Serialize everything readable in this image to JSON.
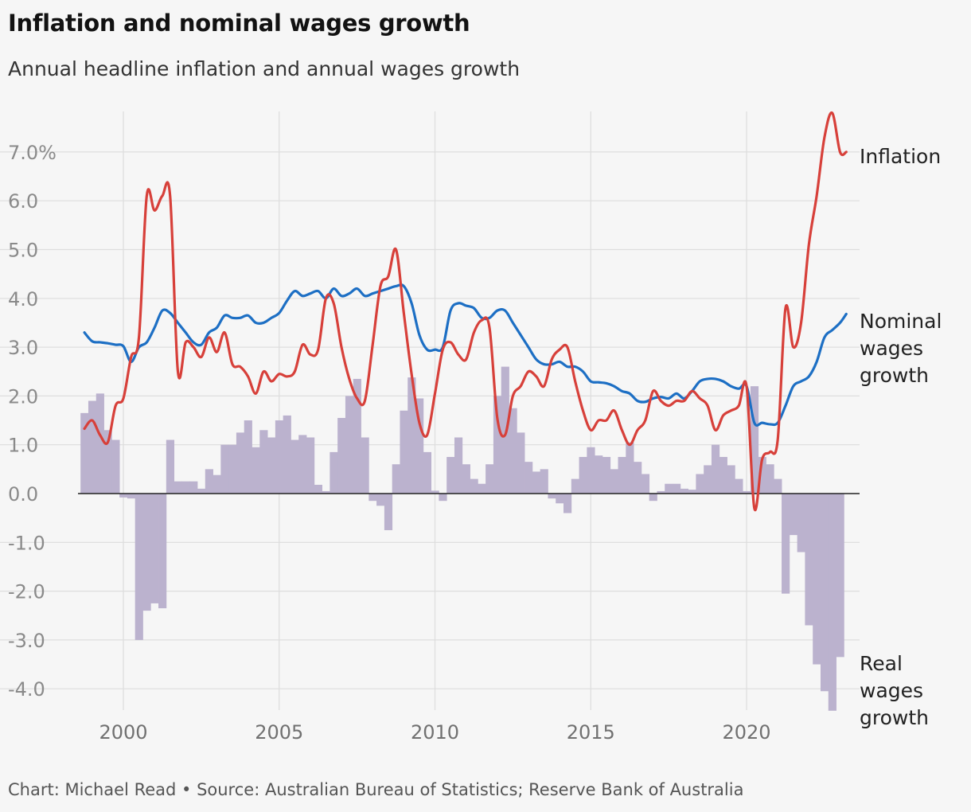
{
  "title": "Inflation and nominal wages growth",
  "subtitle": "Annual headline inflation and annual wages growth",
  "footer": "Chart: Michael Read • Source: Australian Bureau of Statistics; Reserve Bank of Australia",
  "colors": {
    "inflation": "#d7403a",
    "nominal_wages": "#1d6fc4",
    "real_wages": "#bbb2ce",
    "grid": "#dddddd",
    "zero": "#222222"
  },
  "chart_data": {
    "type": "line",
    "xlim": [
      1998.25,
      2023.75
    ],
    "ylim": [
      -4.45,
      7.85
    ],
    "x_ticks": [
      2000,
      2005,
      2010,
      2015,
      2020
    ],
    "x_tick_labels": [
      "2000",
      "2005",
      "2010",
      "2015",
      "2020"
    ],
    "y_ticks": [
      7,
      6,
      5,
      4,
      3,
      2,
      1,
      0,
      -1,
      -2,
      -3,
      -4
    ],
    "y_tick_labels": [
      "7.0%",
      "6.0",
      "5.0",
      "4.0",
      "3.0",
      "2.0",
      "1.0",
      "0.0",
      "-1.0",
      "-2.0",
      "-3.0",
      "-4.0"
    ],
    "grid": true,
    "series": [
      {
        "name": "Inflation",
        "key": "inflation",
        "kind": "line",
        "x": [
          1998.75,
          1999.0,
          1999.25,
          1999.5,
          1999.75,
          2000.0,
          2000.25,
          2000.5,
          2000.75,
          2001.0,
          2001.25,
          2001.5,
          2001.75,
          2002.0,
          2002.25,
          2002.5,
          2002.75,
          2003.0,
          2003.25,
          2003.5,
          2003.75,
          2004.0,
          2004.25,
          2004.5,
          2004.75,
          2005.0,
          2005.25,
          2005.5,
          2005.75,
          2006.0,
          2006.25,
          2006.5,
          2006.75,
          2007.0,
          2007.25,
          2007.5,
          2007.75,
          2008.0,
          2008.25,
          2008.5,
          2008.75,
          2009.0,
          2009.25,
          2009.5,
          2009.75,
          2010.0,
          2010.25,
          2010.5,
          2010.75,
          2011.0,
          2011.25,
          2011.5,
          2011.75,
          2012.0,
          2012.25,
          2012.5,
          2012.75,
          2013.0,
          2013.25,
          2013.5,
          2013.75,
          2014.0,
          2014.25,
          2014.5,
          2014.75,
          2015.0,
          2015.25,
          2015.5,
          2015.75,
          2016.0,
          2016.25,
          2016.5,
          2016.75,
          2017.0,
          2017.25,
          2017.5,
          2017.75,
          2018.0,
          2018.25,
          2018.5,
          2018.75,
          2019.0,
          2019.25,
          2019.5,
          2019.75,
          2020.0,
          2020.25,
          2020.5,
          2020.75,
          2021.0,
          2021.25,
          2021.5,
          2021.75,
          2022.0,
          2022.25,
          2022.5,
          2022.75,
          2023.0,
          2023.2
        ],
        "values": [
          1.33,
          1.5,
          1.2,
          1.05,
          1.8,
          1.95,
          2.8,
          3.2,
          6.1,
          5.8,
          6.1,
          6.1,
          2.5,
          3.1,
          3.0,
          2.8,
          3.2,
          2.9,
          3.3,
          2.65,
          2.6,
          2.4,
          2.05,
          2.5,
          2.3,
          2.45,
          2.4,
          2.5,
          3.05,
          2.85,
          2.95,
          4.0,
          3.9,
          3.0,
          2.35,
          1.95,
          1.9,
          3.05,
          4.25,
          4.45,
          5.0,
          3.7,
          2.45,
          1.45,
          1.2,
          2.05,
          2.95,
          3.1,
          2.85,
          2.75,
          3.3,
          3.55,
          3.4,
          1.55,
          1.2,
          2.0,
          2.2,
          2.5,
          2.4,
          2.2,
          2.75,
          2.95,
          3.0,
          2.3,
          1.7,
          1.3,
          1.5,
          1.5,
          1.7,
          1.3,
          1.0,
          1.3,
          1.5,
          2.1,
          1.9,
          1.8,
          1.9,
          1.9,
          2.1,
          1.95,
          1.8,
          1.3,
          1.6,
          1.7,
          1.8,
          2.2,
          -0.3,
          0.7,
          0.85,
          1.1,
          3.8,
          3.0,
          3.5,
          5.1,
          6.1,
          7.3,
          7.8,
          7.0,
          7.0
        ]
      },
      {
        "name": "Nominal wages growth",
        "key": "nominal_wages",
        "kind": "line",
        "x": [
          1998.75,
          1999.0,
          1999.25,
          1999.5,
          1999.75,
          2000.0,
          2000.25,
          2000.5,
          2000.75,
          2001.0,
          2001.25,
          2001.5,
          2001.75,
          2002.0,
          2002.25,
          2002.5,
          2002.75,
          2003.0,
          2003.25,
          2003.5,
          2003.75,
          2004.0,
          2004.25,
          2004.5,
          2004.75,
          2005.0,
          2005.25,
          2005.5,
          2005.75,
          2006.0,
          2006.25,
          2006.5,
          2006.75,
          2007.0,
          2007.25,
          2007.5,
          2007.75,
          2008.0,
          2008.25,
          2008.5,
          2008.75,
          2009.0,
          2009.25,
          2009.5,
          2009.75,
          2010.0,
          2010.25,
          2010.5,
          2010.75,
          2011.0,
          2011.25,
          2011.5,
          2011.75,
          2012.0,
          2012.25,
          2012.5,
          2012.75,
          2013.0,
          2013.25,
          2013.5,
          2013.75,
          2014.0,
          2014.25,
          2014.5,
          2014.75,
          2015.0,
          2015.25,
          2015.5,
          2015.75,
          2016.0,
          2016.25,
          2016.5,
          2016.75,
          2017.0,
          2017.25,
          2017.5,
          2017.75,
          2018.0,
          2018.25,
          2018.5,
          2018.75,
          2019.0,
          2019.25,
          2019.5,
          2019.75,
          2020.0,
          2020.25,
          2020.5,
          2020.75,
          2021.0,
          2021.25,
          2021.5,
          2021.75,
          2022.0,
          2022.25,
          2022.5,
          2022.75,
          2023.0,
          2023.2
        ],
        "values": [
          3.3,
          3.12,
          3.1,
          3.08,
          3.05,
          3.02,
          2.7,
          3.0,
          3.1,
          3.4,
          3.75,
          3.7,
          3.5,
          3.3,
          3.1,
          3.05,
          3.3,
          3.4,
          3.65,
          3.6,
          3.6,
          3.65,
          3.5,
          3.5,
          3.6,
          3.7,
          3.95,
          4.15,
          4.05,
          4.1,
          4.15,
          4.0,
          4.2,
          4.05,
          4.1,
          4.2,
          4.05,
          4.1,
          4.15,
          4.2,
          4.25,
          4.25,
          3.9,
          3.25,
          2.95,
          2.95,
          3.0,
          3.75,
          3.9,
          3.85,
          3.8,
          3.6,
          3.6,
          3.75,
          3.75,
          3.5,
          3.25,
          3.0,
          2.75,
          2.65,
          2.65,
          2.7,
          2.6,
          2.6,
          2.5,
          2.3,
          2.28,
          2.26,
          2.2,
          2.1,
          2.05,
          1.9,
          1.88,
          1.95,
          1.98,
          1.95,
          2.05,
          1.95,
          2.1,
          2.3,
          2.35,
          2.35,
          2.3,
          2.2,
          2.15,
          2.2,
          1.45,
          1.45,
          1.42,
          1.45,
          1.8,
          2.2,
          2.3,
          2.4,
          2.7,
          3.2,
          3.35,
          3.5,
          3.68
        ]
      },
      {
        "name": "Real wages growth",
        "key": "real_wages",
        "kind": "bar",
        "x": [
          1998.75,
          1999.0,
          1999.25,
          1999.5,
          1999.75,
          2000.0,
          2000.25,
          2000.5,
          2000.75,
          2001.0,
          2001.25,
          2001.5,
          2001.75,
          2002.0,
          2002.25,
          2002.5,
          2002.75,
          2003.0,
          2003.25,
          2003.5,
          2003.75,
          2004.0,
          2004.25,
          2004.5,
          2004.75,
          2005.0,
          2005.25,
          2005.5,
          2005.75,
          2006.0,
          2006.25,
          2006.5,
          2006.75,
          2007.0,
          2007.25,
          2007.5,
          2007.75,
          2008.0,
          2008.25,
          2008.5,
          2008.75,
          2009.0,
          2009.25,
          2009.5,
          2009.75,
          2010.0,
          2010.25,
          2010.5,
          2010.75,
          2011.0,
          2011.25,
          2011.5,
          2011.75,
          2012.0,
          2012.25,
          2012.5,
          2012.75,
          2013.0,
          2013.25,
          2013.5,
          2013.75,
          2014.0,
          2014.25,
          2014.5,
          2014.75,
          2015.0,
          2015.25,
          2015.5,
          2015.75,
          2016.0,
          2016.25,
          2016.5,
          2016.75,
          2017.0,
          2017.25,
          2017.5,
          2017.75,
          2018.0,
          2018.25,
          2018.5,
          2018.75,
          2019.0,
          2019.25,
          2019.5,
          2019.75,
          2020.0,
          2020.25,
          2020.5,
          2020.75,
          2021.0,
          2021.25,
          2021.5,
          2021.75,
          2022.0,
          2022.25,
          2022.5,
          2022.75,
          2023.0
        ],
        "values": [
          1.65,
          1.9,
          2.05,
          1.3,
          1.1,
          -0.08,
          -0.1,
          -3.0,
          -2.4,
          -2.25,
          -2.35,
          1.1,
          0.25,
          0.25,
          0.25,
          0.1,
          0.5,
          0.38,
          1.0,
          1.0,
          1.25,
          1.5,
          0.95,
          1.3,
          1.15,
          1.5,
          1.6,
          1.1,
          1.2,
          1.15,
          0.18,
          0.05,
          0.85,
          1.55,
          2.0,
          2.35,
          1.15,
          -0.15,
          -0.25,
          -0.75,
          0.6,
          1.7,
          2.38,
          1.95,
          0.85,
          0.06,
          -0.15,
          0.75,
          1.15,
          0.6,
          0.3,
          0.2,
          0.6,
          2.0,
          2.6,
          1.75,
          1.25,
          0.65,
          0.45,
          0.5,
          -0.1,
          -0.2,
          -0.4,
          0.3,
          0.75,
          0.95,
          0.78,
          0.75,
          0.5,
          0.75,
          1.05,
          0.65,
          0.4,
          -0.15,
          0.05,
          0.2,
          0.2,
          0.1,
          0.08,
          0.4,
          0.58,
          1.0,
          0.75,
          0.58,
          0.3,
          0.05,
          2.2,
          0.75,
          0.6,
          0.3,
          -2.05,
          -0.85,
          -1.2,
          -2.7,
          -3.5,
          -4.05,
          -4.45,
          -3.35
        ]
      }
    ],
    "labels": [
      {
        "lines": [
          "Inflation"
        ],
        "series": "inflation"
      },
      {
        "lines": [
          "Nominal",
          "wages",
          "growth"
        ],
        "series": "nominal_wages"
      },
      {
        "lines": [
          "Real",
          "wages",
          "growth"
        ],
        "series": "real_wages"
      }
    ]
  }
}
